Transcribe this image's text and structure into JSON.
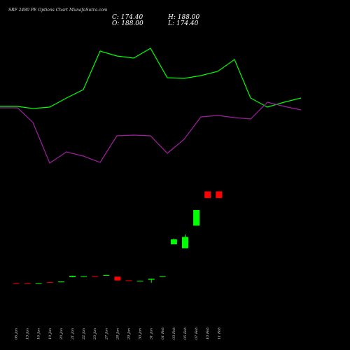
{
  "chart_data": {
    "type": "candlestick",
    "title": "SRF 2480  PE Options  Chart MunafaSutra.com",
    "ohlc_readout": {
      "c_label": "C: 174.40",
      "h_label": "H: 188.00",
      "o_label": "O: 188.00",
      "l_label": "L: 174.40"
    },
    "dates": [
      "06 Jan",
      "13 Jan",
      "16 Jan",
      "19 Jan",
      "20 Jan",
      "21 Jan",
      "22 Jan",
      "23 Jan",
      "27 Jan",
      "28 Jan",
      "29 Jan",
      "30 Jan",
      "31 Jan",
      "01 Feb",
      "03 Feb",
      "05 Feb",
      "07 Feb",
      "10 Feb",
      "11 Feb"
    ],
    "candles": [
      {
        "o": 0.4,
        "c": 0.38,
        "h": 0.4,
        "l": 0.38
      },
      {
        "o": 0.36,
        "c": 0.34,
        "h": 0.36,
        "l": 0.34
      },
      {
        "o": 0.33,
        "c": 0.37,
        "h": 0.37,
        "l": 0.3
      },
      {
        "o": 2.56,
        "c": 2.34,
        "h": 2.78,
        "l": 2.34
      },
      {
        "o": 3.58,
        "c": 4.03,
        "h": 4.07,
        "l": 3.58
      },
      {
        "o": 13.3,
        "c": 15.8,
        "h": 15.9,
        "l": 13.3
      },
      {
        "o": 14.9,
        "c": 15.2,
        "h": 15.2,
        "l": 14.9
      },
      {
        "o": 15.1,
        "c": 14.8,
        "h": 15.1,
        "l": 14.8
      },
      {
        "o": 16.3,
        "c": 17.3,
        "h": 17.3,
        "l": 16.3
      },
      {
        "o": 13.9,
        "c": 6.2,
        "h": 13.9,
        "l": 6.2
      },
      {
        "o": 6.5,
        "c": 5.2,
        "h": 6.5,
        "l": 5.2
      },
      {
        "o": 4.6,
        "c": 5.4,
        "h": 5.4,
        "l": 4.6
      },
      {
        "o": 7.7,
        "c": 9.7,
        "h": 9.7,
        "l": 1.6
      },
      {
        "o": 15.5,
        "c": 15.5,
        "h": 15.5,
        "l": 15.5
      },
      {
        "o": 80.0,
        "c": 90.0,
        "h": 92.0,
        "l": 80.0
      },
      {
        "o": 72.0,
        "c": 95.0,
        "h": 100.0,
        "l": 72.0
      },
      {
        "o": 118.0,
        "c": 150.0,
        "h": 150.0,
        "l": 118.0
      },
      {
        "o": 188.0,
        "c": 174.4,
        "h": 188.0,
        "l": 174.4
      },
      {
        "o": 188.0,
        "c": 174.4,
        "h": 188.0,
        "l": 174.4
      }
    ],
    "colors": {
      "up": "#00ff00",
      "down": "#ff0000",
      "upper_line": "#00ff00",
      "lower_line": "#a020a0",
      "background": "#000000"
    }
  }
}
